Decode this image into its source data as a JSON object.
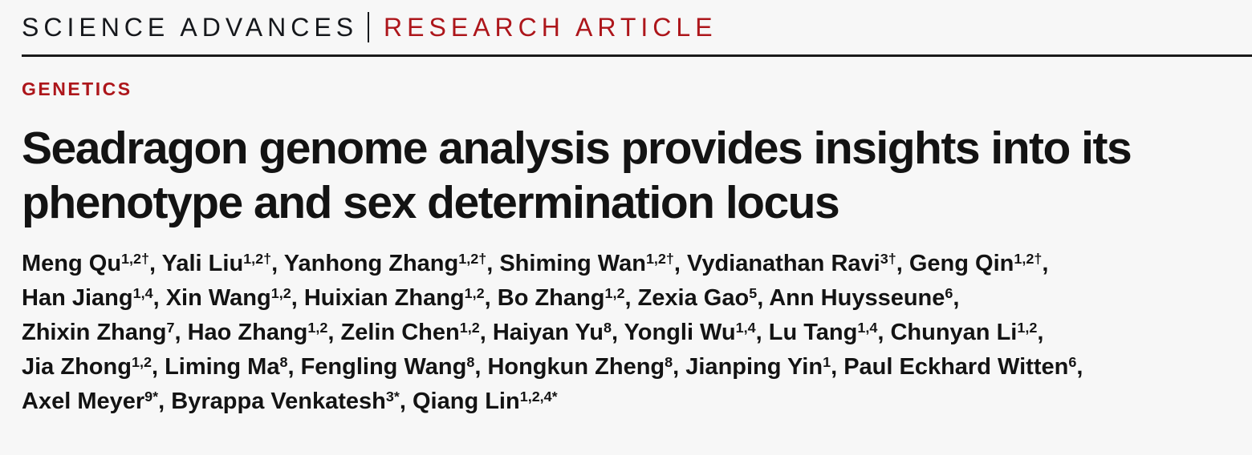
{
  "colors": {
    "accent_red": "#ad161b",
    "text": "#141414",
    "background": "#f7f7f7"
  },
  "masthead": {
    "journal": "SCIENCE ADVANCES",
    "article_type": "RESEARCH ARTICLE"
  },
  "section_label": "GENETICS",
  "title": {
    "lines": [
      "Seadragon genome analysis provides insights into its",
      "phenotype and sex determination locus"
    ]
  },
  "authors": {
    "lines": [
      [
        {
          "name": "Meng Qu",
          "sup": "1,2†",
          "sep": ", "
        },
        {
          "name": "Yali Liu",
          "sup": "1,2†",
          "sep": ", "
        },
        {
          "name": "Yanhong Zhang",
          "sup": "1,2†",
          "sep": ", "
        },
        {
          "name": "Shiming Wan",
          "sup": "1,2†",
          "sep": ", "
        },
        {
          "name": "Vydianathan Ravi",
          "sup": "3†",
          "sep": ", "
        },
        {
          "name": "Geng Qin",
          "sup": "1,2†",
          "sep": ","
        }
      ],
      [
        {
          "name": "Han Jiang",
          "sup": "1,4",
          "sep": ", "
        },
        {
          "name": "Xin Wang",
          "sup": "1,2",
          "sep": ", "
        },
        {
          "name": "Huixian Zhang",
          "sup": "1,2",
          "sep": ", "
        },
        {
          "name": "Bo Zhang",
          "sup": "1,2",
          "sep": ", "
        },
        {
          "name": "Zexia Gao",
          "sup": "5",
          "sep": ", "
        },
        {
          "name": "Ann Huysseune",
          "sup": "6",
          "sep": ","
        }
      ],
      [
        {
          "name": "Zhixin Zhang",
          "sup": "7",
          "sep": ", "
        },
        {
          "name": "Hao Zhang",
          "sup": "1,2",
          "sep": ", "
        },
        {
          "name": "Zelin Chen",
          "sup": "1,2",
          "sep": ", "
        },
        {
          "name": "Haiyan Yu",
          "sup": "8",
          "sep": ", "
        },
        {
          "name": "Yongli Wu",
          "sup": "1,4",
          "sep": ", "
        },
        {
          "name": "Lu Tang",
          "sup": "1,4",
          "sep": ", "
        },
        {
          "name": "Chunyan Li",
          "sup": "1,2",
          "sep": ","
        }
      ],
      [
        {
          "name": "Jia Zhong",
          "sup": "1,2",
          "sep": ", "
        },
        {
          "name": "Liming Ma",
          "sup": "8",
          "sep": ", "
        },
        {
          "name": "Fengling Wang",
          "sup": "8",
          "sep": ", "
        },
        {
          "name": "Hongkun Zheng",
          "sup": "8",
          "sep": ", "
        },
        {
          "name": "Jianping Yin",
          "sup": "1",
          "sep": ", "
        },
        {
          "name": "Paul Eckhard Witten",
          "sup": "6",
          "sep": ","
        }
      ],
      [
        {
          "name": "Axel Meyer",
          "sup": "9*",
          "sep": ", "
        },
        {
          "name": "Byrappa Venkatesh",
          "sup": "3*",
          "sep": ", "
        },
        {
          "name": "Qiang Lin",
          "sup": "1,2,4*",
          "sep": ""
        }
      ]
    ]
  }
}
